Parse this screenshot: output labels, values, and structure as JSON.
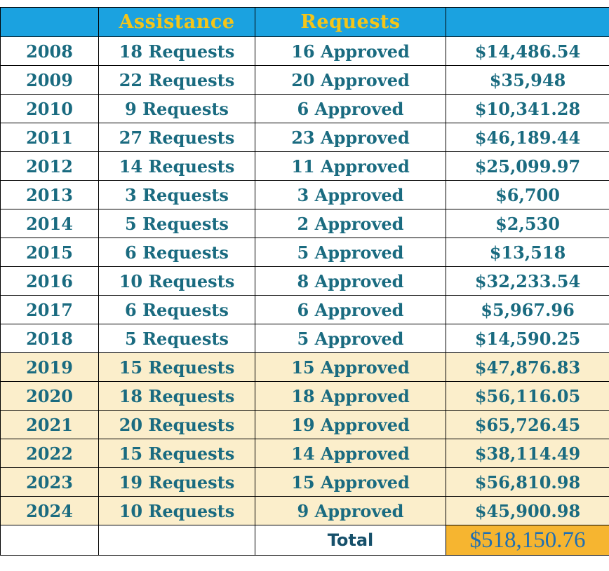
{
  "header": {
    "col0": "",
    "col1": "Assistance",
    "col2": "Requests",
    "col3": ""
  },
  "rows": [
    {
      "year": "2008",
      "requests": "18 Requests",
      "approved": "16 Approved",
      "amount": "$14,486.54",
      "highlight": false
    },
    {
      "year": "2009",
      "requests": "22 Requests",
      "approved": "20 Approved",
      "amount": "$35,948",
      "highlight": false
    },
    {
      "year": "2010",
      "requests": "9 Requests",
      "approved": "6 Approved",
      "amount": "$10,341.28",
      "highlight": false
    },
    {
      "year": "2011",
      "requests": "27 Requests",
      "approved": "23 Approved",
      "amount": "$46,189.44",
      "highlight": false
    },
    {
      "year": "2012",
      "requests": "14 Requests",
      "approved": "11 Approved",
      "amount": "$25,099.97",
      "highlight": false
    },
    {
      "year": "2013",
      "requests": "3 Requests",
      "approved": "3 Approved",
      "amount": "$6,700",
      "highlight": false
    },
    {
      "year": "2014",
      "requests": "5 Requests",
      "approved": "2 Approved",
      "amount": "$2,530",
      "highlight": false
    },
    {
      "year": "2015",
      "requests": "6 Requests",
      "approved": "5 Approved",
      "amount": "$13,518",
      "highlight": false
    },
    {
      "year": "2016",
      "requests": "10 Requests",
      "approved": "8 Approved",
      "amount": "$32,233.54",
      "highlight": false
    },
    {
      "year": "2017",
      "requests": "6 Requests",
      "approved": "6 Approved",
      "amount": "$5,967.96",
      "highlight": false
    },
    {
      "year": "2018",
      "requests": "5 Requests",
      "approved": "5 Approved",
      "amount": "$14,590.25",
      "highlight": false
    },
    {
      "year": "2019",
      "requests": "15 Requests",
      "approved": "15 Approved",
      "amount": "$47,876.83",
      "highlight": true
    },
    {
      "year": "2020",
      "requests": "18 Requests",
      "approved": "18 Approved",
      "amount": "$56,116.05",
      "highlight": true
    },
    {
      "year": "2021",
      "requests": "20 Requests",
      "approved": "19 Approved",
      "amount": "$65,726.45",
      "highlight": true
    },
    {
      "year": "2022",
      "requests": "15 Requests",
      "approved": "14 Approved",
      "amount": "$38,114.49",
      "highlight": true
    },
    {
      "year": "2023",
      "requests": "19 Requests",
      "approved": "15 Approved",
      "amount": "$56,810.98",
      "highlight": true
    },
    {
      "year": "2024",
      "requests": "10 Requests",
      "approved": "9 Approved",
      "amount": "$45,900.98",
      "highlight": true
    }
  ],
  "footer": {
    "total_label": "Total",
    "total_value": "$518,150.76"
  },
  "colors": {
    "header_bg": "#1ba2e0",
    "header_text": "#f5c518",
    "body_text": "#1a6b80",
    "recent_row_bg": "#fbeecb",
    "total_bg": "#f6b530",
    "total_text": "#1f6fb3"
  }
}
